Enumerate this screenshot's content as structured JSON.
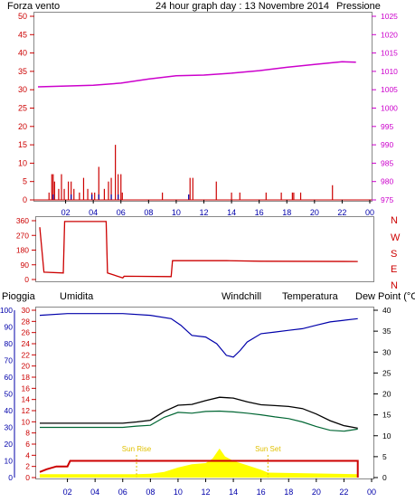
{
  "header": {
    "left_label": "Forza vento",
    "title": "24 hour graph day : 13 Novembre 2014",
    "right_label": "Pressione"
  },
  "colors": {
    "red": "#cc0000",
    "blue": "#0000aa",
    "magenta": "#cc00cc",
    "orange": "#e07000",
    "black": "#000000",
    "teal": "#006633",
    "yellow": "#ffff00",
    "sun_label": "#e0c000"
  },
  "time_ticks": [
    "02",
    "04",
    "06",
    "08",
    "10",
    "12",
    "14",
    "16",
    "18",
    "20",
    "22",
    "00"
  ],
  "chart_data": [
    {
      "type": "line",
      "name": "wind-pressure",
      "left_axis": {
        "ticks": [
          0,
          5,
          10,
          15,
          20,
          25,
          30,
          35,
          40,
          45,
          50
        ],
        "range": [
          0,
          50
        ]
      },
      "right_axis": {
        "ticks": [
          975,
          980,
          985,
          990,
          995,
          1000,
          1005,
          1010,
          1015,
          1020,
          1025
        ],
        "range": [
          975,
          1025
        ]
      },
      "series": [
        {
          "name": "Pressione",
          "axis": "right",
          "x": [
            0,
            2,
            4,
            6,
            8,
            10,
            12,
            14,
            16,
            18,
            20,
            22,
            23
          ],
          "y": [
            1005.8,
            1006,
            1006.2,
            1006.8,
            1007.9,
            1008.8,
            1009,
            1009.5,
            1010.2,
            1011.1,
            1011.9,
            1012.6,
            1012.5
          ]
        },
        {
          "name": "Forza vento",
          "axis": "left",
          "type": "bar",
          "x": [
            0.8,
            1.0,
            1.1,
            1.2,
            1.5,
            1.7,
            1.9,
            2.2,
            2.4,
            2.6,
            3.0,
            3.3,
            3.6,
            3.9,
            4.1,
            4.4,
            4.8,
            5.1,
            5.3,
            5.6,
            5.8,
            6.0,
            6.1,
            9.0,
            11.0,
            11.2,
            12.9,
            14.0,
            14.6,
            16.5,
            17.6,
            18.4,
            18.5,
            19.0,
            21.3
          ],
          "y": [
            2,
            7,
            7,
            5,
            3,
            7,
            3,
            5,
            5,
            3,
            2,
            6,
            3,
            2,
            2,
            9,
            3,
            5,
            6,
            15,
            7,
            7,
            2,
            2,
            6,
            6,
            5,
            2,
            2,
            2,
            2,
            2,
            2,
            2,
            4
          ]
        }
      ]
    },
    {
      "type": "line",
      "name": "wind-direction",
      "right_axis_labels": [
        "N",
        "W",
        "S",
        "E",
        "N"
      ],
      "left_axis": {
        "ticks": [
          0,
          90,
          180,
          270,
          360
        ],
        "range": [
          0,
          360
        ]
      },
      "series": [
        {
          "name": "Direzione",
          "x": [
            0,
            0.3,
            1.7,
            1.8,
            4.8,
            4.9,
            6.0,
            6.1,
            9.5,
            9.6,
            13.5,
            16,
            23
          ],
          "y": [
            320,
            45,
            40,
            355,
            355,
            40,
            10,
            20,
            18,
            115,
            115,
            112,
            110
          ]
        }
      ]
    },
    {
      "type": "line",
      "name": "temperature-humidity-rain",
      "legend": [
        "Pioggia",
        "Umidita",
        "Windchill",
        "Temperatura",
        "Dew Point (°C"
      ],
      "left_axis_pioggia": {
        "ticks": [
          0,
          2,
          4,
          6,
          8,
          10,
          12,
          14,
          16,
          18,
          20,
          22,
          24,
          26,
          28,
          30
        ],
        "range": [
          0,
          30
        ]
      },
      "left_axis_umidita": {
        "ticks": [
          0,
          10,
          20,
          30,
          40,
          50,
          60,
          70,
          80,
          90,
          100
        ],
        "range": [
          0,
          100
        ]
      },
      "right_axis": {
        "ticks": [
          0,
          5,
          10,
          15,
          20,
          25,
          30,
          35,
          40
        ],
        "range": [
          0,
          40
        ]
      },
      "annotations": [
        "Sun Rise",
        "Sun Set"
      ],
      "series": [
        {
          "name": "Umidita",
          "axis": "humidity",
          "x": [
            0,
            2,
            4,
            6,
            8,
            9.5,
            10.2,
            11,
            12,
            12.8,
            13.5,
            14,
            14.5,
            15,
            16,
            17,
            18,
            19,
            20,
            21,
            22,
            23
          ],
          "y": [
            97,
            98,
            98,
            98,
            97,
            95,
            91,
            85,
            84,
            80,
            73,
            72,
            76,
            81,
            86,
            87,
            88,
            89,
            91,
            93,
            94,
            95
          ]
        },
        {
          "name": "Temperatura",
          "axis": "right",
          "x": [
            0,
            1,
            2,
            3,
            4,
            5,
            6,
            7,
            8,
            9,
            10,
            11,
            12,
            13,
            14,
            15,
            16,
            17,
            18,
            19,
            20,
            21,
            22,
            23
          ],
          "y": [
            13,
            13,
            13,
            13,
            13,
            13,
            13,
            13.3,
            13.7,
            15.8,
            17.3,
            17.5,
            18.4,
            19.2,
            19,
            18.1,
            17.4,
            17.2,
            17,
            16.5,
            15.2,
            13.6,
            12.4,
            11.8
          ]
        },
        {
          "name": "Dew Point",
          "axis": "right",
          "x": [
            0,
            1,
            2,
            3,
            4,
            5,
            6,
            7,
            8,
            9,
            10,
            11,
            12,
            13,
            14,
            15,
            16,
            17,
            18,
            19,
            20,
            21,
            22,
            23
          ],
          "y": [
            12,
            12,
            12,
            12,
            12,
            12,
            12,
            12.3,
            12.5,
            14.4,
            15.6,
            15.4,
            15.8,
            15.9,
            15.7,
            15.4,
            15,
            14.5,
            14.1,
            13.3,
            12.2,
            11.3,
            11.1,
            11.6
          ]
        },
        {
          "name": "Pioggia",
          "axis": "pioggia",
          "x": [
            0,
            0.5,
            1.2,
            2.0,
            2.2,
            23
          ],
          "y": [
            1,
            1.5,
            2,
            2,
            3,
            3
          ]
        },
        {
          "name": "Radiazione",
          "axis": "pioggia",
          "type": "area",
          "x": [
            0,
            5,
            7,
            8,
            9,
            10,
            11,
            12,
            12.5,
            13,
            13.4,
            14,
            15,
            16,
            16.5,
            23
          ],
          "y": [
            0.6,
            0.6,
            0.6,
            0.7,
            1,
            1.8,
            2.4,
            2.6,
            3.4,
            5.2,
            3.8,
            3.0,
            2.2,
            1.4,
            0.9,
            0.6
          ]
        }
      ]
    }
  ]
}
